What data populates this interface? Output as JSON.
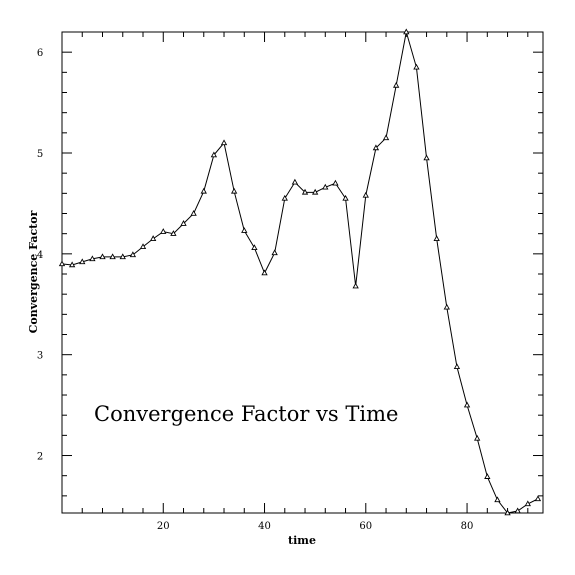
{
  "chart_data": {
    "type": "line",
    "xlabel": "time",
    "ylabel": "Convergence Factor",
    "annotation": "Convergence Factor vs Time",
    "xlim": [
      0,
      95
    ],
    "ylim": [
      1.43,
      6.2
    ],
    "x_ticks": [
      20,
      40,
      60,
      80
    ],
    "x_tick_labels": [
      "20",
      "40",
      "60",
      "80"
    ],
    "y_ticks": [
      2,
      3,
      4,
      5,
      6
    ],
    "y_tick_labels": [
      "2",
      "3",
      "4",
      "5",
      "6"
    ],
    "x_minor_step": 4,
    "y_minor_step": 0.2,
    "grid": false,
    "legend": "none",
    "marker": "triangle",
    "line_color": "#000000",
    "series": [
      {
        "x": [
          0,
          2,
          4,
          6,
          8,
          10,
          12,
          14,
          16,
          18,
          20,
          22,
          24,
          26,
          28,
          30,
          32,
          34,
          36,
          38,
          40,
          42,
          44,
          46,
          48,
          50,
          52,
          54,
          56,
          58,
          60,
          62,
          64,
          66,
          68,
          70,
          72,
          74,
          76,
          78,
          80,
          82,
          84,
          86,
          88,
          90,
          92,
          94
        ],
        "y": [
          3.9,
          3.89,
          3.92,
          3.95,
          3.97,
          3.97,
          3.97,
          3.99,
          4.07,
          4.15,
          4.22,
          4.2,
          4.3,
          4.4,
          4.62,
          4.98,
          5.1,
          4.62,
          4.23,
          4.06,
          3.81,
          4.01,
          4.55,
          4.71,
          4.61,
          4.61,
          4.66,
          4.7,
          4.55,
          3.68,
          4.58,
          5.05,
          5.15,
          5.67,
          6.2,
          5.85,
          4.95,
          4.15,
          3.47,
          2.88,
          2.5,
          2.17,
          1.79,
          1.56,
          1.43,
          1.45,
          1.52,
          1.57
        ]
      }
    ]
  }
}
